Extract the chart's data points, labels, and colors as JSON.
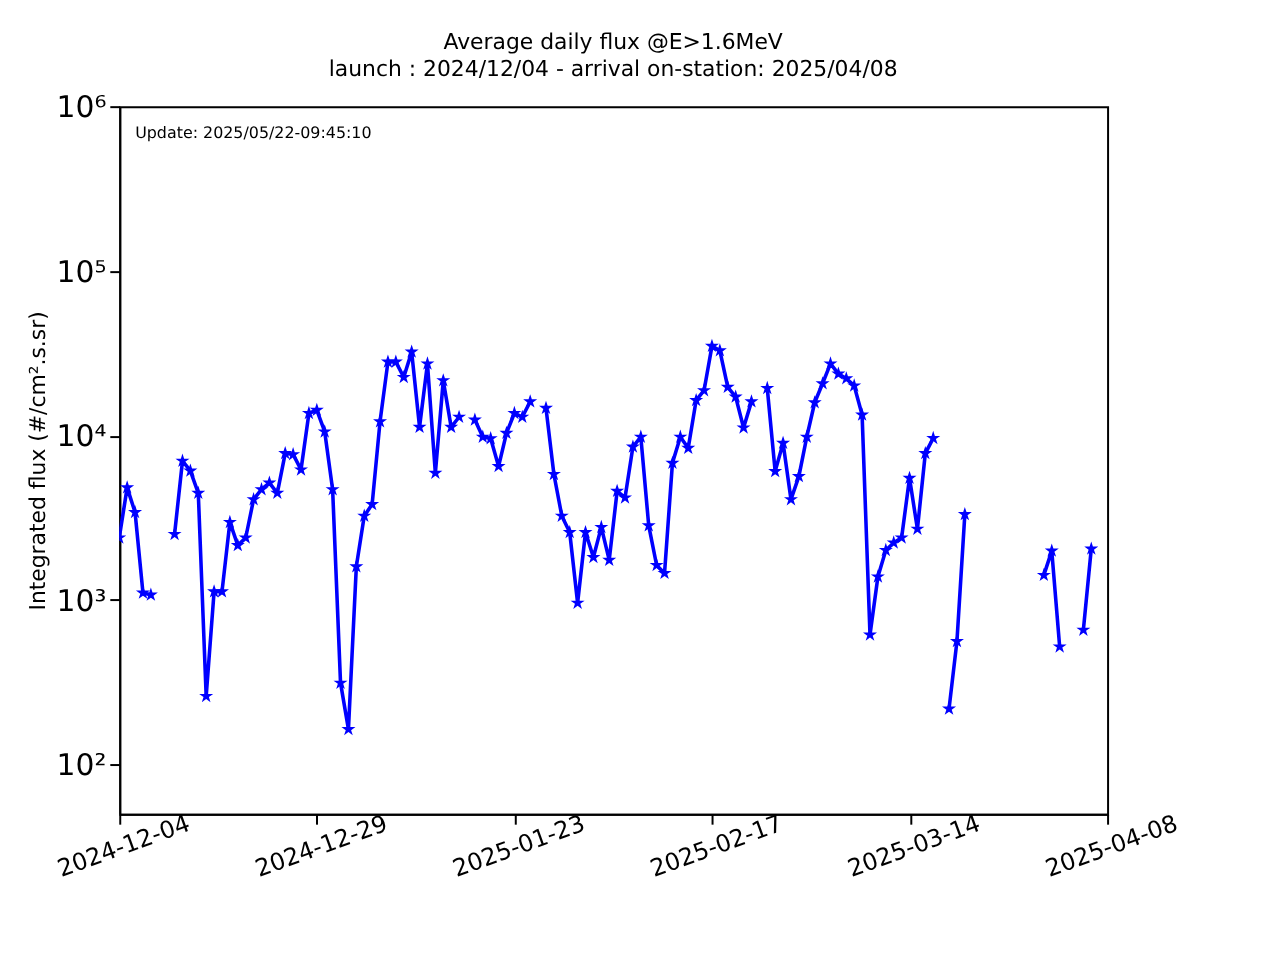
{
  "chart_data": {
    "type": "line",
    "title": "Average daily flux @E>1.6MeV",
    "subtitle": "launch : 2024/12/04 - arrival on-station: 2025/04/08",
    "ylabel": "Integrated flux (#/cm².s.sr)",
    "annotations": [
      "Update: 2025/05/22-09:45:10"
    ],
    "x": [
      "2024-12-04",
      "2024-12-05",
      "2024-12-06",
      "2024-12-07",
      "2024-12-08",
      "2024-12-09",
      "2024-12-10",
      "2024-12-11",
      "2024-12-12",
      "2024-12-13",
      "2024-12-14",
      "2024-12-15",
      "2024-12-16",
      "2024-12-17",
      "2024-12-18",
      "2024-12-19",
      "2024-12-20",
      "2024-12-21",
      "2024-12-22",
      "2024-12-23",
      "2024-12-24",
      "2024-12-25",
      "2024-12-26",
      "2024-12-27",
      "2024-12-28",
      "2024-12-29",
      "2024-12-30",
      "2024-12-31",
      "2025-01-01",
      "2025-01-02",
      "2025-01-03",
      "2025-01-04",
      "2025-01-05",
      "2025-01-06",
      "2025-01-07",
      "2025-01-08",
      "2025-01-09",
      "2025-01-10",
      "2025-01-11",
      "2025-01-12",
      "2025-01-13",
      "2025-01-14",
      "2025-01-15",
      "2025-01-16",
      "2025-01-17",
      "2025-01-18",
      "2025-01-19",
      "2025-01-20",
      "2025-01-21",
      "2025-01-22",
      "2025-01-23",
      "2025-01-24",
      "2025-01-25",
      "2025-01-26",
      "2025-01-27",
      "2025-01-28",
      "2025-01-29",
      "2025-01-30",
      "2025-01-31",
      "2025-02-01",
      "2025-02-02",
      "2025-02-03",
      "2025-02-04",
      "2025-02-05",
      "2025-02-06",
      "2025-02-07",
      "2025-02-08",
      "2025-02-09",
      "2025-02-10",
      "2025-02-11",
      "2025-02-12",
      "2025-02-13",
      "2025-02-14",
      "2025-02-15",
      "2025-02-16",
      "2025-02-17",
      "2025-02-18",
      "2025-02-19",
      "2025-02-20",
      "2025-02-21",
      "2025-02-22",
      "2025-02-23",
      "2025-02-24",
      "2025-02-25",
      "2025-02-26",
      "2025-02-27",
      "2025-02-28",
      "2025-03-01",
      "2025-03-02",
      "2025-03-03",
      "2025-03-04",
      "2025-03-05",
      "2025-03-06",
      "2025-03-07",
      "2025-03-08",
      "2025-03-09",
      "2025-03-10",
      "2025-03-11",
      "2025-03-12",
      "2025-03-13",
      "2025-03-14",
      "2025-03-15",
      "2025-03-16",
      "2025-03-17",
      "2025-03-18",
      "2025-03-19",
      "2025-03-20",
      "2025-03-21",
      "2025-03-22",
      "2025-03-23",
      "2025-03-24",
      "2025-03-25",
      "2025-03-26",
      "2025-03-27",
      "2025-03-28",
      "2025-03-29",
      "2025-03-30",
      "2025-03-31",
      "2025-04-01",
      "2025-04-02",
      "2025-04-03",
      "2025-04-04",
      "2025-04-05",
      "2025-04-06"
    ],
    "series": [
      {
        "color": "#0000ff",
        "values": [
          2380,
          4800,
          3400,
          1100,
          1070,
          null,
          null,
          2500,
          6970,
          6070,
          4450,
          259,
          1120,
          1120,
          2960,
          2140,
          2380,
          4070,
          4680,
          5130,
          4450,
          7760,
          7640,
          6170,
          13600,
          14200,
          10500,
          4680,
          312,
          163,
          1590,
          3230,
          3800,
          12100,
          27900,
          27900,
          22500,
          32100,
          11200,
          27200,
          5890,
          21500,
          11200,
          12900,
          null,
          12400,
          9760,
          9550,
          6470,
          10300,
          13600,
          12900,
          16000,
          null,
          14600,
          5790,
          3230,
          2570,
          955,
          2570,
          1810,
          2760,
          1740,
          4570,
          4170,
          8500,
          9760,
          2820,
          1620,
          1450,
          6770,
          9760,
          8350,
          16300,
          18700,
          34800,
          32700,
          19600,
          17100,
          11100,
          16000,
          null,
          19300,
          6030,
          8950,
          4070,
          5620,
          9760,
          15800,
          20600,
          27200,
          23600,
          22100,
          20000,
          13300,
          612,
          1380,
          2000,
          2220,
          2380,
          5490,
          2690,
          7760,
          9590,
          null,
          217,
          558,
          3300,
          null,
          null,
          null,
          null,
          null,
          null,
          null,
          null,
          null,
          1410,
          1980,
          518,
          null,
          null,
          655,
          2040
        ]
      }
    ],
    "xlim": [
      "2024-12-04",
      "2025-04-08"
    ],
    "xticks": [
      "2024-12-04",
      "2024-12-29",
      "2025-01-23",
      "2025-02-17",
      "2025-03-14",
      "2025-04-08"
    ],
    "log": true,
    "ylim": [
      50,
      1000000
    ],
    "yticks": [
      {
        "value": 100,
        "label": "10²"
      },
      {
        "value": 1000,
        "label": "10³"
      },
      {
        "value": 10000,
        "label": "10⁴"
      },
      {
        "value": 100000,
        "label": "10⁵"
      },
      {
        "value": 1000000,
        "label": "10⁶"
      }
    ],
    "marker": "star",
    "line_style": "solid",
    "grid": false
  }
}
